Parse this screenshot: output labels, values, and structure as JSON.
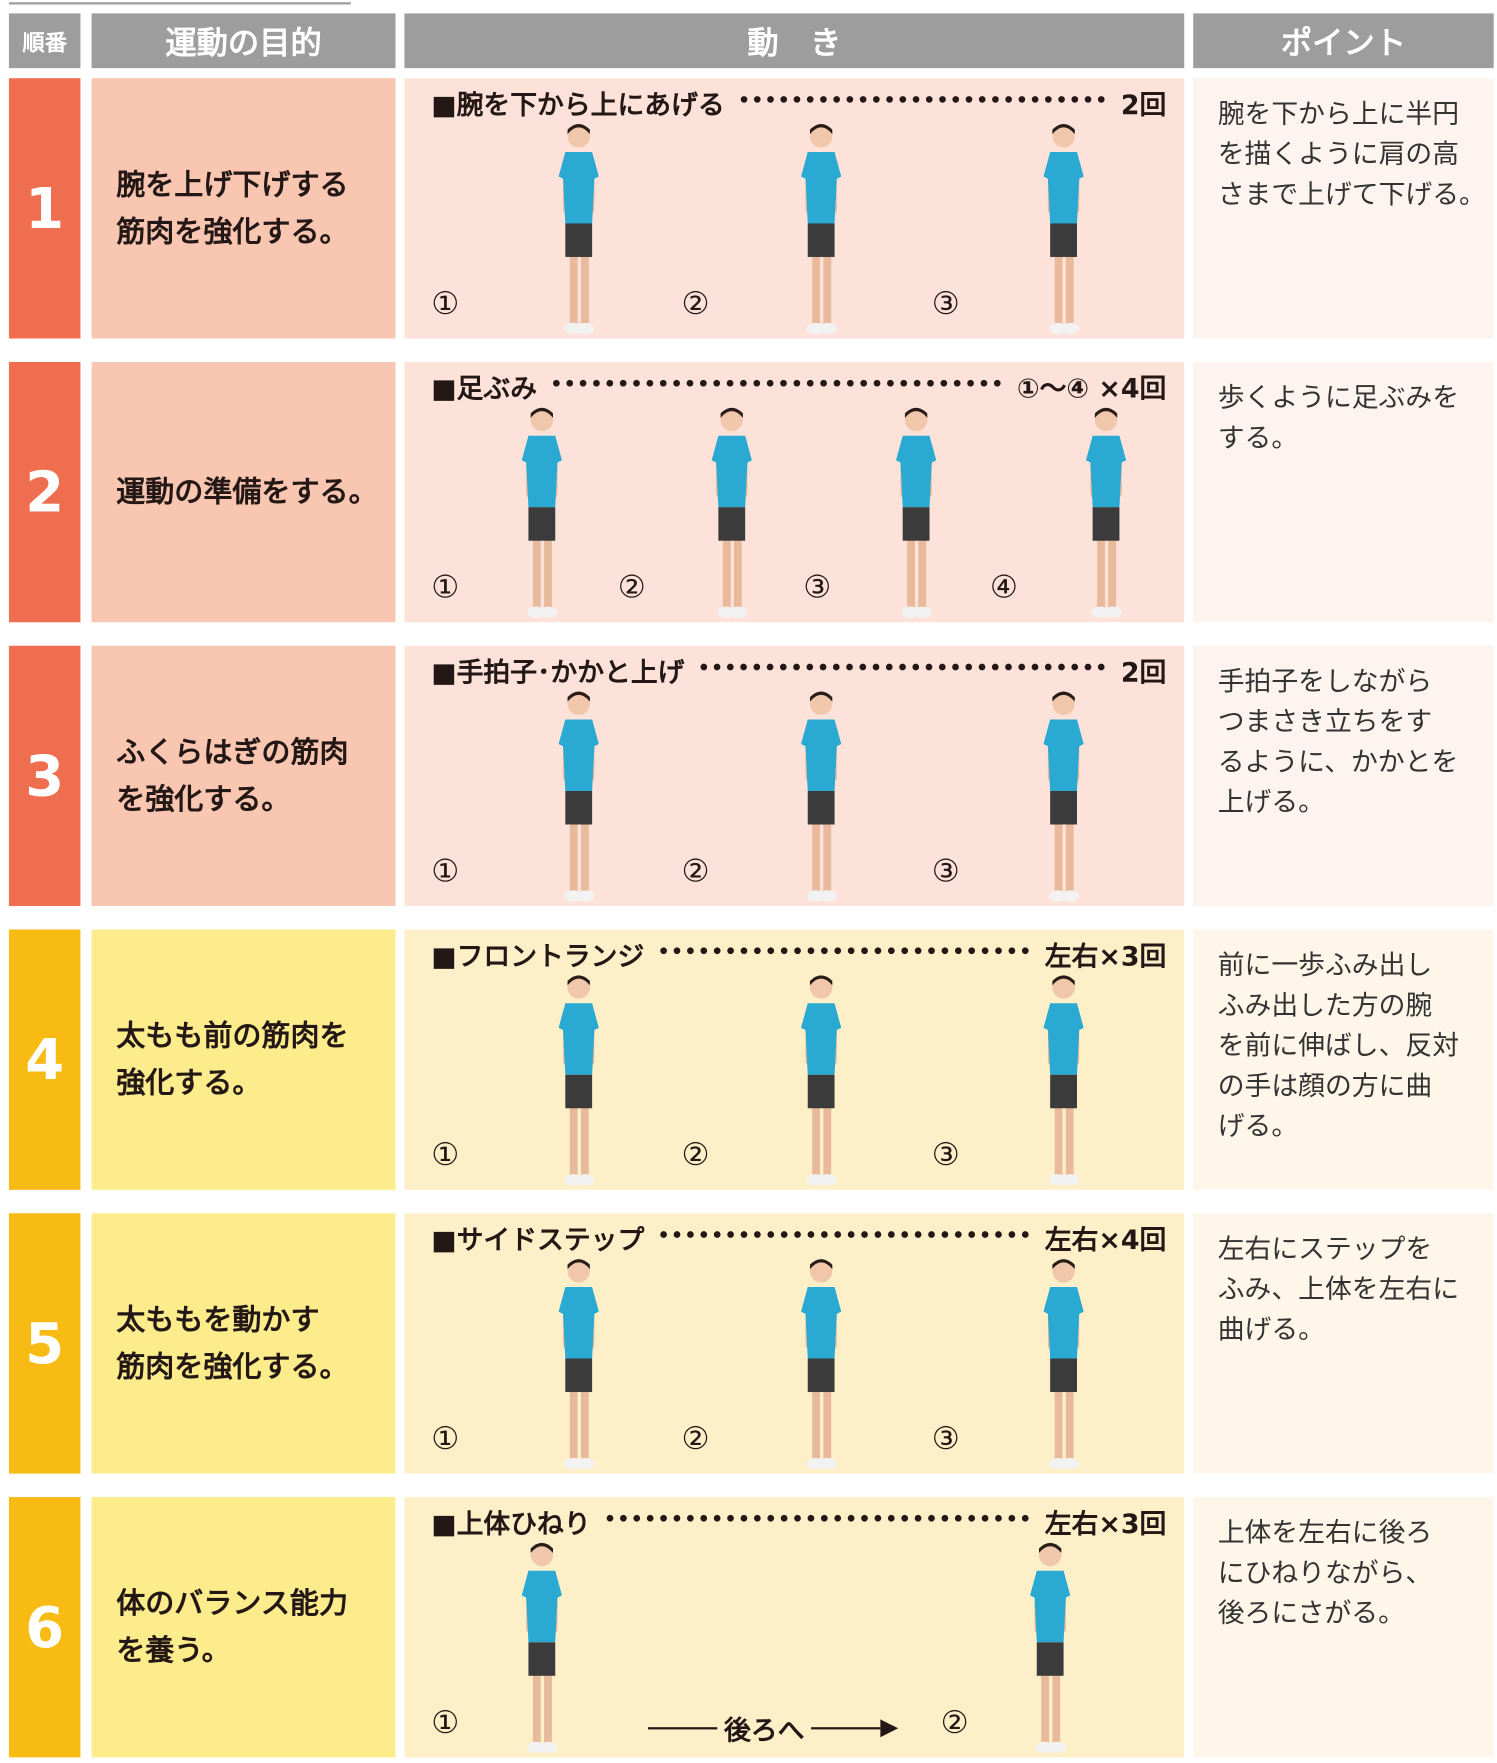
{
  "header": {
    "order": "順番",
    "purpose": "運動の目的",
    "movement": "動　き",
    "point": "ポイント"
  },
  "rows": [
    {
      "number": "1",
      "purpose": [
        "腕を上げ下げする",
        "筋肉を強化する。"
      ],
      "exercise": "■腕を下から上にあげる",
      "count": "2回",
      "steps": [
        "①",
        "②",
        "③"
      ],
      "point": [
        "腕を下から上に半円",
        "を描くように肩の高",
        "さまで上げて下げる。"
      ]
    },
    {
      "number": "2",
      "purpose": [
        "運動の準備をする。"
      ],
      "exercise": "■足ぶみ",
      "count": "①〜④ ×4回",
      "steps": [
        "①",
        "②",
        "③",
        "④"
      ],
      "point": [
        "歩くように足ぶみを",
        "する。"
      ]
    },
    {
      "number": "3",
      "purpose": [
        "ふくらはぎの筋肉",
        "を強化する。"
      ],
      "exercise": "■手拍子･かかと上げ",
      "count": "2回",
      "steps": [
        "①",
        "②",
        "③"
      ],
      "point": [
        "手拍子をしながら",
        "つまさき立ちをす",
        "るように、かかとを",
        "上げる。"
      ]
    },
    {
      "number": "4",
      "purpose": [
        "太もも前の筋肉を",
        "強化する。"
      ],
      "exercise": "■フロントランジ",
      "count": "左右×3回",
      "steps": [
        "①",
        "②",
        "③"
      ],
      "point": [
        "前に一歩ふみ出し",
        "ふみ出した方の腕",
        "を前に伸ばし、反対",
        "の手は顔の方に曲",
        "げる。"
      ]
    },
    {
      "number": "5",
      "purpose": [
        "太ももを動かす",
        "筋肉を強化する。"
      ],
      "exercise": "■サイドステップ",
      "count": "左右×4回",
      "steps": [
        "①",
        "②",
        "③"
      ],
      "point": [
        "左右にステップを",
        "ふみ、上体を左右に",
        "曲げる。"
      ]
    },
    {
      "number": "6",
      "purpose": [
        "体のバランス能力",
        "を養う。"
      ],
      "exercise": "■上体ひねり",
      "count": "左右×3回",
      "steps": [
        "①",
        "②"
      ],
      "direction": "後ろへ",
      "point": [
        "上体を左右に後ろ",
        "にひねりながら、",
        "後ろにさがる。"
      ]
    }
  ]
}
